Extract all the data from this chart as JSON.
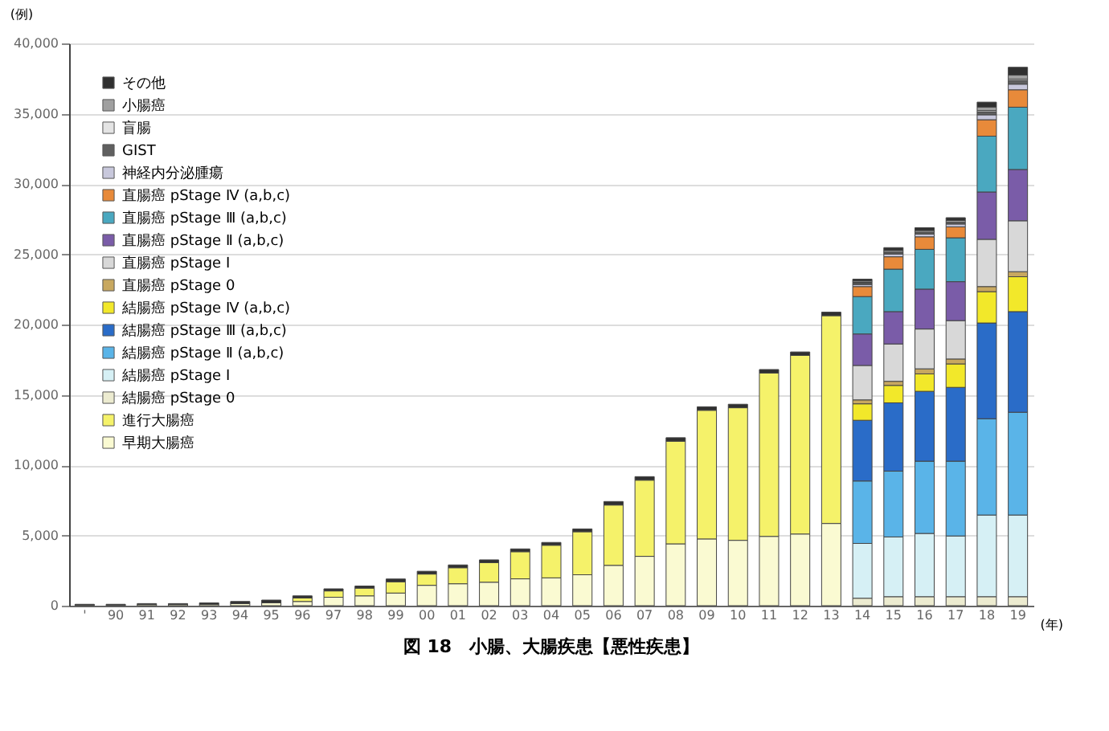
{
  "chart_data": {
    "type": "bar",
    "stacked": true,
    "title": "図 18　小腸、大腸疾患【悪性疾患】",
    "xlabel": "(年)",
    "ylabel": "(例)",
    "categories": [
      "'",
      "90",
      "91",
      "92",
      "93",
      "94",
      "95",
      "96",
      "97",
      "98",
      "99",
      "00",
      "01",
      "02",
      "03",
      "04",
      "05",
      "06",
      "07",
      "08",
      "09",
      "10",
      "11",
      "12",
      "13",
      "14",
      "15",
      "16",
      "17",
      "18",
      "19"
    ],
    "series": [
      {
        "name": "早期大腸癌",
        "color": "#fafad2",
        "values": [
          50,
          50,
          80,
          80,
          100,
          150,
          200,
          300,
          600,
          700,
          900,
          1450,
          1560,
          1670,
          1910,
          1980,
          2200,
          2870,
          3510,
          4400,
          4750,
          4650,
          4930,
          5100,
          5850,
          null,
          null,
          null,
          null,
          null,
          null
        ]
      },
      {
        "name": "進行大腸癌",
        "color": "#f5f26a",
        "values": [
          null,
          null,
          null,
          null,
          null,
          null,
          null,
          250,
          450,
          550,
          800,
          800,
          1140,
          1390,
          1930,
          2320,
          3060,
          4290,
          5420,
          7300,
          9150,
          9430,
          11620,
          12700,
          14780,
          null,
          null,
          null,
          null,
          null,
          null
        ]
      },
      {
        "name": "結腸癌 pStage 0",
        "color": "#ecebd0",
        "values": [
          null,
          null,
          null,
          null,
          null,
          null,
          null,
          null,
          null,
          null,
          null,
          null,
          null,
          null,
          null,
          null,
          null,
          null,
          null,
          null,
          null,
          null,
          null,
          null,
          null,
          530,
          640,
          640,
          640,
          640,
          640
        ]
      },
      {
        "name": "結腸癌 pStage Ⅰ",
        "color": "#d6f0f5",
        "values": [
          null,
          null,
          null,
          null,
          null,
          null,
          null,
          null,
          null,
          null,
          null,
          null,
          null,
          null,
          null,
          null,
          null,
          null,
          null,
          null,
          null,
          null,
          null,
          null,
          null,
          3900,
          4250,
          4500,
          4320,
          5810,
          5810
        ]
      },
      {
        "name": "結腸癌 pStage Ⅱ (a,b,c)",
        "color": "#5ab4e8",
        "values": [
          null,
          null,
          null,
          null,
          null,
          null,
          null,
          null,
          null,
          null,
          null,
          null,
          null,
          null,
          null,
          null,
          null,
          null,
          null,
          null,
          null,
          null,
          null,
          null,
          null,
          4440,
          4680,
          5140,
          5320,
          6850,
          7310
        ]
      },
      {
        "name": "結腸癌 pStage Ⅲ (a,b,c)",
        "color": "#2a6cc8",
        "values": [
          null,
          null,
          null,
          null,
          null,
          null,
          null,
          null,
          null,
          null,
          null,
          null,
          null,
          null,
          null,
          null,
          null,
          null,
          null,
          null,
          null,
          null,
          null,
          null,
          null,
          4320,
          4860,
          4970,
          5250,
          6810,
          7160
        ]
      },
      {
        "name": "結腸癌 pStage Ⅳ (a,b,c)",
        "color": "#f2e82a",
        "values": [
          null,
          null,
          null,
          null,
          null,
          null,
          null,
          null,
          null,
          null,
          null,
          null,
          null,
          null,
          null,
          null,
          null,
          null,
          null,
          null,
          null,
          null,
          null,
          null,
          null,
          1170,
          1240,
          1240,
          1670,
          2230,
          2480
        ]
      },
      {
        "name": "直腸癌 pStage 0",
        "color": "#c8a860",
        "values": [
          null,
          null,
          null,
          null,
          null,
          null,
          null,
          null,
          null,
          null,
          null,
          null,
          null,
          null,
          null,
          null,
          null,
          null,
          null,
          null,
          null,
          null,
          null,
          null,
          null,
          280,
          290,
          360,
          350,
          360,
          360
        ]
      },
      {
        "name": "直腸癌 pStage Ⅰ",
        "color": "#d8d8d8",
        "values": [
          null,
          null,
          null,
          null,
          null,
          null,
          null,
          null,
          null,
          null,
          null,
          null,
          null,
          null,
          null,
          null,
          null,
          null,
          null,
          null,
          null,
          null,
          null,
          null,
          null,
          2450,
          2660,
          2830,
          2730,
          3360,
          3620
        ]
      },
      {
        "name": "直腸癌 pStage Ⅱ (a,b,c)",
        "color": "#7a5ca8",
        "values": [
          null,
          null,
          null,
          null,
          null,
          null,
          null,
          null,
          null,
          null,
          null,
          null,
          null,
          null,
          null,
          null,
          null,
          null,
          null,
          null,
          null,
          null,
          null,
          null,
          null,
          2240,
          2300,
          2840,
          2770,
          3370,
          3650
        ]
      },
      {
        "name": "直腸癌 pStage Ⅲ (a,b,c)",
        "color": "#4aa8c0",
        "values": [
          null,
          null,
          null,
          null,
          null,
          null,
          null,
          null,
          null,
          null,
          null,
          null,
          null,
          null,
          null,
          null,
          null,
          null,
          null,
          null,
          null,
          null,
          null,
          null,
          null,
          2660,
          3020,
          2830,
          3120,
          3970,
          4430
        ]
      },
      {
        "name": "直腸癌 pStage Ⅳ (a,b,c)",
        "color": "#e88a3a",
        "values": [
          null,
          null,
          null,
          null,
          null,
          null,
          null,
          null,
          null,
          null,
          null,
          null,
          null,
          null,
          null,
          null,
          null,
          null,
          null,
          null,
          null,
          null,
          null,
          null,
          null,
          710,
          880,
          890,
          780,
          1170,
          1240
        ]
      },
      {
        "name": "神経内分泌腫瘍",
        "color": "#c8c8dc",
        "values": [
          null,
          null,
          null,
          null,
          null,
          null,
          null,
          null,
          null,
          null,
          null,
          null,
          null,
          null,
          null,
          null,
          null,
          null,
          null,
          null,
          null,
          null,
          null,
          null,
          null,
          150,
          200,
          200,
          200,
          350,
          400
        ]
      },
      {
        "name": "GIST",
        "color": "#606060",
        "values": [
          null,
          null,
          null,
          null,
          null,
          null,
          null,
          null,
          null,
          null,
          null,
          null,
          null,
          null,
          null,
          null,
          null,
          null,
          null,
          null,
          null,
          null,
          null,
          null,
          null,
          100,
          120,
          120,
          120,
          200,
          250
        ]
      },
      {
        "name": "盲腸",
        "color": "#e4e4e4",
        "values": [
          null,
          null,
          null,
          null,
          null,
          null,
          null,
          null,
          null,
          null,
          null,
          null,
          null,
          null,
          null,
          null,
          null,
          null,
          null,
          null,
          null,
          null,
          null,
          null,
          null,
          50,
          null,
          null,
          null,
          100,
          100
        ]
      },
      {
        "name": "小腸癌",
        "color": "#a0a0a0",
        "values": [
          null,
          null,
          null,
          null,
          null,
          null,
          null,
          null,
          null,
          null,
          null,
          null,
          null,
          null,
          null,
          null,
          null,
          null,
          null,
          null,
          null,
          null,
          null,
          null,
          null,
          100,
          130,
          130,
          130,
          250,
          300
        ]
      },
      {
        "name": "その他",
        "color": "#303030",
        "values": [
          50,
          50,
          70,
          70,
          100,
          150,
          200,
          150,
          150,
          150,
          200,
          200,
          200,
          200,
          200,
          200,
          200,
          250,
          250,
          250,
          250,
          250,
          250,
          250,
          250,
          130,
          200,
          200,
          200,
          350,
          550
        ]
      }
    ],
    "ylim": [
      0,
      40000
    ],
    "yticks": [
      0,
      {
        "value": 5000,
        "label": "5,000"
      },
      {
        "value": 10000,
        "label": "10,000"
      },
      {
        "value": 15000,
        "label": "15,000"
      },
      {
        "value": 20000,
        "label": "20,000"
      },
      {
        "value": 25000,
        "label": "25,000"
      },
      {
        "value": 30000,
        "label": "30,000"
      },
      {
        "value": 35000,
        "label": "35,000"
      },
      {
        "value": 40000,
        "label": "40,000"
      }
    ],
    "grid": "y",
    "legend": "top left"
  }
}
